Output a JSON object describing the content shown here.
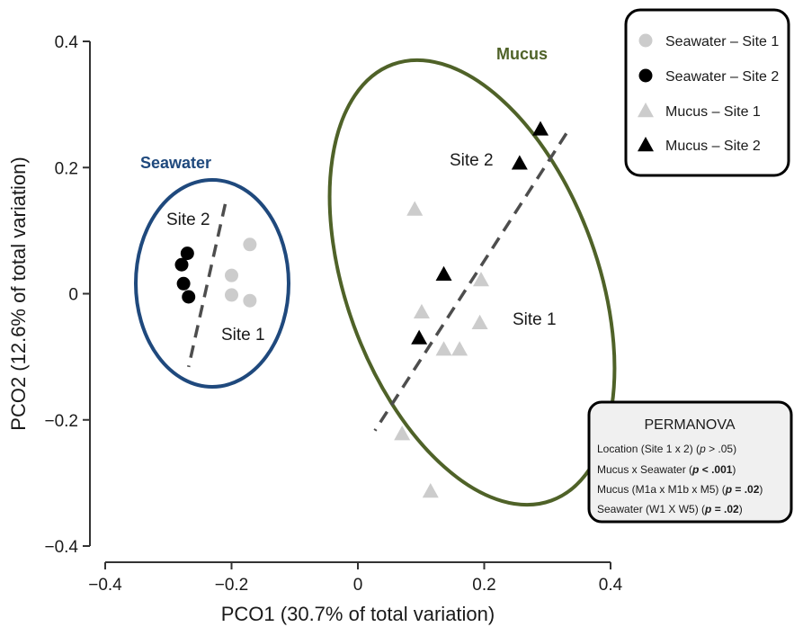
{
  "chart_data": {
    "type": "scatter",
    "xlabel": "PCO1 (30.7% of total variation)",
    "ylabel": "PCO2 (12.6% of total variation)",
    "xlim": [
      -0.4,
      0.4
    ],
    "ylim": [
      -0.4,
      0.4
    ],
    "xticks": [
      "−0.4",
      "−0.2",
      "0",
      "0.2",
      "0.4"
    ],
    "yticks": [
      "0.4",
      "0.2",
      "0",
      "−0.2",
      "−0.4"
    ],
    "grid": false,
    "legend_position": "top-right",
    "series": [
      {
        "name": "Seawater – Site 1",
        "marker": "circle",
        "color": "#cccccc",
        "points": [
          [
            -0.171,
            0.078
          ],
          [
            -0.2,
            0.029
          ],
          [
            -0.2,
            -0.002
          ],
          [
            -0.171,
            -0.011
          ]
        ]
      },
      {
        "name": "Seawater – Site 2",
        "marker": "circle",
        "color": "#000000",
        "points": [
          [
            -0.27,
            0.064
          ],
          [
            -0.279,
            0.046
          ],
          [
            -0.276,
            0.016
          ],
          [
            -0.268,
            -0.005
          ]
        ]
      },
      {
        "name": "Mucus – Site 1",
        "marker": "triangle",
        "color": "#cccccc",
        "points": [
          [
            0.09,
            0.134
          ],
          [
            0.195,
            0.022
          ],
          [
            0.101,
            -0.029
          ],
          [
            0.193,
            -0.046
          ],
          [
            0.136,
            -0.088
          ],
          [
            0.161,
            -0.088
          ],
          [
            0.07,
            -0.222
          ],
          [
            0.115,
            -0.313
          ]
        ]
      },
      {
        "name": "Mucus – Site 2",
        "marker": "triangle",
        "color": "#000000",
        "points": [
          [
            0.289,
            0.261
          ],
          [
            0.256,
            0.207
          ],
          [
            0.136,
            0.031
          ],
          [
            0.097,
            -0.07
          ]
        ]
      }
    ],
    "annotations": {
      "seawater": {
        "title": "Seawater",
        "title_color": "#1f497d",
        "ellipse_color": "#1f497d",
        "site2_label": "Site 2",
        "site1_label": "Site 1",
        "divider": [
          [
            -0.21,
            0.142
          ],
          [
            -0.268,
            -0.116
          ]
        ]
      },
      "mucus": {
        "title": "Mucus",
        "title_color": "#4f6228",
        "ellipse_color": "#4f6228",
        "site2_label": "Site 2",
        "site1_label": "Site 1",
        "divider": [
          [
            0.33,
            0.254
          ],
          [
            0.027,
            -0.217
          ]
        ]
      }
    },
    "stats_box": {
      "title": "PERMANOVA",
      "lines": [
        [
          {
            "t": "Location (Site 1 x 2) ("
          },
          {
            "t": "p",
            "i": true
          },
          {
            "t": " > .05)"
          }
        ],
        [
          {
            "t": "Mucus x Seawater ("
          },
          {
            "t": "p",
            "i": true,
            "b": true
          },
          {
            "t": " < .001",
            "b": true
          },
          {
            "t": ")"
          }
        ],
        [
          {
            "t": "Mucus (M1a x M1b x M5) ("
          },
          {
            "t": "p",
            "i": true,
            "b": true
          },
          {
            "t": " = .02",
            "b": true
          },
          {
            "t": ")"
          }
        ],
        [
          {
            "t": "Seawater (W1 X W5) ("
          },
          {
            "t": "p",
            "i": true,
            "b": true
          },
          {
            "t": " = .02",
            "b": true
          },
          {
            "t": ")"
          }
        ]
      ]
    }
  }
}
